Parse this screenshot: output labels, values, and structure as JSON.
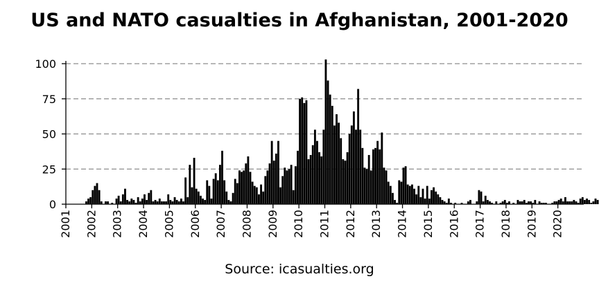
{
  "chart_data": {
    "type": "bar",
    "title": "US and NATO casualties in Afghanistan, 2001-2020",
    "source": "Source: icasualties.org",
    "xlabel": "",
    "ylabel": "",
    "ylim": [
      0,
      100
    ],
    "y_ticks": [
      "0",
      "25",
      "50",
      "75",
      "100"
    ],
    "x_ticks": [
      "2001",
      "2002",
      "2003",
      "2004",
      "2005",
      "2006",
      "2007",
      "2008",
      "2009",
      "2010",
      "2011",
      "2012",
      "2013",
      "2014",
      "2015",
      "2016",
      "2017",
      "2018",
      "2019",
      "2020"
    ],
    "grid": "horizontal-dashed",
    "bar_color": "#000000",
    "x_start": "2001-01",
    "values": [
      0,
      0,
      0,
      0,
      0,
      0,
      0,
      0,
      0,
      2,
      4,
      5,
      10,
      13,
      15,
      10,
      2,
      0,
      2,
      2,
      0,
      1,
      0,
      4,
      6,
      2,
      7,
      11,
      3,
      2,
      4,
      3,
      1,
      5,
      2,
      4,
      7,
      3,
      8,
      10,
      2,
      3,
      2,
      4,
      2,
      2,
      2,
      7,
      3,
      2,
      5,
      3,
      2,
      4,
      2,
      19,
      5,
      28,
      12,
      33,
      11,
      9,
      6,
      4,
      3,
      17,
      13,
      4,
      18,
      22,
      17,
      28,
      38,
      17,
      9,
      3,
      2,
      8,
      18,
      15,
      24,
      23,
      24,
      29,
      34,
      23,
      16,
      13,
      12,
      7,
      14,
      9,
      20,
      24,
      29,
      45,
      31,
      36,
      45,
      12,
      20,
      26,
      24,
      25,
      28,
      10,
      27,
      38,
      75,
      76,
      72,
      74,
      32,
      35,
      42,
      53,
      45,
      37,
      34,
      53,
      103,
      88,
      78,
      70,
      56,
      64,
      58,
      47,
      32,
      31,
      37,
      50,
      56,
      66,
      53,
      82,
      53,
      40,
      26,
      25,
      35,
      24,
      39,
      40,
      45,
      39,
      51,
      26,
      24,
      16,
      13,
      8,
      3,
      1,
      17,
      16,
      26,
      27,
      14,
      13,
      14,
      11,
      7,
      13,
      5,
      11,
      4,
      13,
      4,
      10,
      12,
      9,
      7,
      5,
      3,
      2,
      1,
      4,
      1,
      0,
      1,
      0,
      0,
      1,
      0,
      0,
      2,
      3,
      0,
      0,
      2,
      10,
      9,
      2,
      6,
      3,
      2,
      1,
      0,
      2,
      0,
      1,
      2,
      3,
      1,
      2,
      0,
      1,
      0,
      3,
      2,
      2,
      3,
      1,
      2,
      2,
      1,
      3,
      0,
      2,
      1,
      1,
      1,
      0,
      0,
      1,
      2,
      2,
      3,
      4,
      2,
      5,
      2,
      2,
      2,
      3,
      2,
      1,
      4,
      5,
      3,
      4,
      3,
      1,
      2,
      4,
      3,
      0,
      1,
      0,
      0,
      1,
      1,
      0,
      0,
      0,
      2
    ]
  }
}
